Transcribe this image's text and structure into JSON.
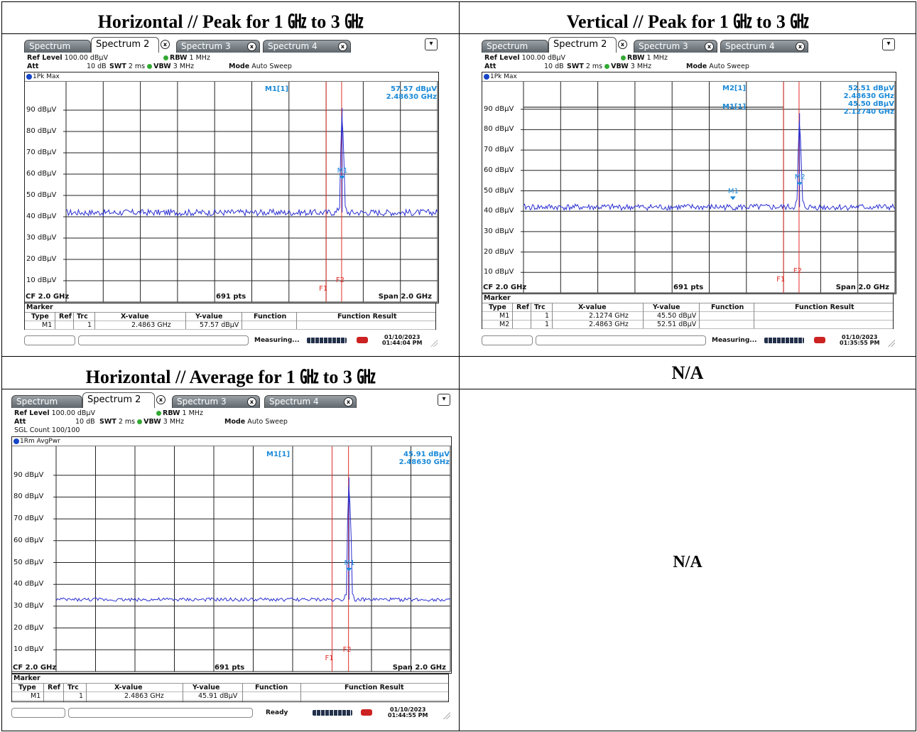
{
  "headers": {
    "top_left": "Horizontal // Peak for 1  ㎓  to 3  ㎓",
    "top_right": "Vertical // Peak for 1  ㎓  to 3  ㎓",
    "bottom_left": "Horizontal // Average for 1  ㎓  to 3  ㎓",
    "bottom_right": "N/A",
    "bottom_right_body": "N/A"
  },
  "tabs": [
    "Spectrum",
    "Spectrum 2",
    "Spectrum 3",
    "Spectrum 4"
  ],
  "common": {
    "ref_level_label": "Ref Level",
    "ref_level": "100.00 dBµV",
    "att_label": "Att",
    "att": "10 dB",
    "swt_label": "SWT",
    "swt": "2 ms",
    "rbw_label": "RBW",
    "rbw": "1 MHz",
    "vbw_label": "VBW",
    "vbw": "3 MHz",
    "mode_label": "Mode",
    "mode": "Auto Sweep",
    "cf": "CF 2.0 GHz",
    "pts": "691 pts",
    "span": "Span 2.0 GHz",
    "marker_title": "Marker",
    "col_type": "Type",
    "col_ref": "Ref",
    "col_trc": "Trc",
    "col_x": "X-value",
    "col_y": "Y-value",
    "col_func": "Function",
    "col_func_result": "Function Result",
    "f1": "F1",
    "f2": "F2",
    "y_labels": [
      "90 dBµV",
      "80 dBµV",
      "70 dBµV",
      "60 dBµV",
      "50 dBµV",
      "40 dBµV",
      "30 dBµV",
      "20 dBµV",
      "10 dBµV"
    ]
  },
  "panel_h": {
    "trace": "1Pk Max",
    "marker_readout": "M1[1]",
    "marker_level": "57.57 dBµV",
    "marker_freq": "2.48630 GHz",
    "marker_tag": "M1",
    "rows": [
      {
        "type": "M1",
        "ref": "",
        "trc": "1",
        "x": "2.4863 GHz",
        "y": "57.57 dBµV"
      }
    ],
    "status": "Measuring...",
    "date": "01/10/2023",
    "time": "01:44:04 PM"
  },
  "panel_v": {
    "trace": "1Pk Max",
    "m2_readout": "M2[1]",
    "m2_level": "52.51 dBµV",
    "m2_freq": "2.48630 GHz",
    "m1_readout": "M1[1]",
    "m1_level": "45.50 dBµV",
    "m1_freq": "2.12740 GHz",
    "tag_m1": "M1",
    "tag_m2": "M2",
    "rows": [
      {
        "type": "M1",
        "ref": "",
        "trc": "1",
        "x": "2.1274 GHz",
        "y": "45.50 dBµV"
      },
      {
        "type": "M2",
        "ref": "",
        "trc": "1",
        "x": "2.4863 GHz",
        "y": "52.51 dBµV"
      }
    ],
    "status": "Measuring...",
    "date": "01/10/2023",
    "time": "01:35:55 PM"
  },
  "panel_a": {
    "sgl_count": "SGL Count 100/100",
    "trace": "1Rm AvgPwr",
    "marker_readout": "M1[1]",
    "marker_level": "45.91 dBµV",
    "marker_freq": "2.48630 GHz",
    "marker_tag": "M1",
    "rows": [
      {
        "type": "M1",
        "ref": "",
        "trc": "1",
        "x": "2.4863 GHz",
        "y": "45.91 dBµV"
      }
    ],
    "status": "Ready",
    "date": "01/10/2023",
    "time": "01:44:55 PM"
  },
  "chart_data": [
    {
      "type": "line",
      "title": "Horizontal // Peak",
      "x_range_ghz": [
        1.0,
        3.0
      ],
      "ylim": [
        0,
        100
      ],
      "series": [
        {
          "name": "1Pk Max",
          "floor_dbuv": 42,
          "peak_x_ghz": 2.4863,
          "peak_dbuv": 91
        }
      ],
      "markers": [
        {
          "name": "M1",
          "x": 2.4863,
          "y": 57.57
        }
      ],
      "lines": [
        {
          "name": "F1",
          "x": 2.4
        },
        {
          "name": "F2",
          "x": 2.4835
        }
      ]
    },
    {
      "type": "line",
      "title": "Vertical // Peak",
      "x_range_ghz": [
        1.0,
        3.0
      ],
      "ylim": [
        0,
        100
      ],
      "series": [
        {
          "name": "1Pk Max",
          "floor_dbuv": 42,
          "peak_x_ghz": 2.4863,
          "peak_dbuv": 88
        }
      ],
      "markers": [
        {
          "name": "M1",
          "x": 2.1274,
          "y": 45.5
        },
        {
          "name": "M2",
          "x": 2.4863,
          "y": 52.51
        }
      ],
      "lines": [
        {
          "name": "F1",
          "x": 2.4
        },
        {
          "name": "F2",
          "x": 2.4835
        }
      ],
      "threshold_dbuv": 91
    },
    {
      "type": "line",
      "title": "Horizontal // Average",
      "x_range_ghz": [
        1.0,
        3.0
      ],
      "ylim": [
        0,
        100
      ],
      "series": [
        {
          "name": "1Rm AvgPwr",
          "floor_dbuv": 33,
          "peak_x_ghz": 2.4863,
          "peak_dbuv": 89
        }
      ],
      "markers": [
        {
          "name": "M1",
          "x": 2.4863,
          "y": 45.91
        }
      ],
      "lines": [
        {
          "name": "F1",
          "x": 2.4
        },
        {
          "name": "F2",
          "x": 2.4835
        }
      ]
    }
  ]
}
